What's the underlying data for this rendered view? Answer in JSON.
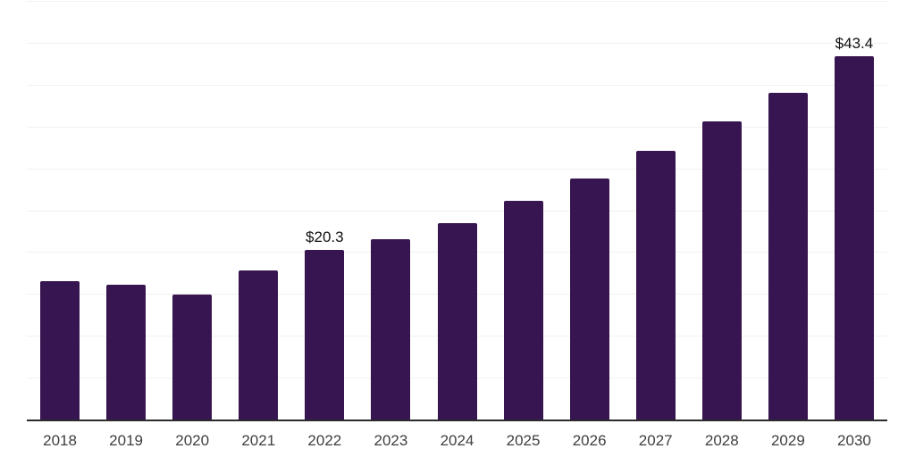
{
  "chart_data": {
    "type": "bar",
    "title": "",
    "xlabel": "",
    "ylabel": "",
    "categories": [
      "2018",
      "2019",
      "2020",
      "2021",
      "2022",
      "2023",
      "2024",
      "2025",
      "2026",
      "2027",
      "2028",
      "2029",
      "2030"
    ],
    "values": [
      16.5,
      16.1,
      14.9,
      17.8,
      20.3,
      21.5,
      23.5,
      26.1,
      28.8,
      32.1,
      35.6,
      39.0,
      43.4
    ],
    "data_labels": [
      "",
      "",
      "",
      "",
      "$20.3",
      "",
      "",
      "",
      "",
      "",
      "",
      "",
      "$43.4"
    ],
    "ylim": [
      0,
      50
    ],
    "gridline_step": 5,
    "grid": true,
    "legend_position": "none",
    "y_axis_labels_visible": false,
    "colors": {
      "bar": "#361550",
      "axis_line": "#2b2b2b",
      "gridline": "#f1f1f1",
      "tick_label": "#3f3f3f",
      "data_label": "#111111",
      "background": "#ffffff"
    }
  }
}
